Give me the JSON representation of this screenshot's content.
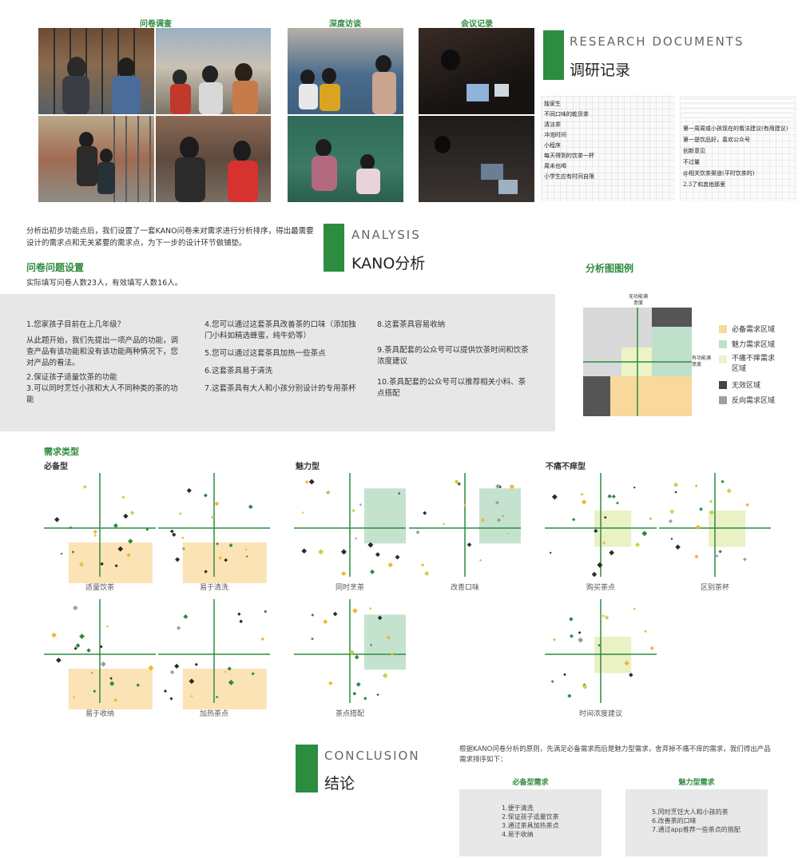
{
  "photos": {
    "captions": {
      "survey": "问卷调查",
      "interview": "深度访谈",
      "meeting": "会议记录"
    }
  },
  "research": {
    "title_en": "RESEARCH DOCUMENTS",
    "title_cn": "调研记录"
  },
  "notes": {
    "left": [
      "独家生",
      "不同口味的乾货茶",
      "清淡茶",
      "冲泡时间",
      "小程序",
      "每天得到的饮茶一杯",
      "周末也喝",
      "小学生应有时间自限"
    ],
    "right_lines": [
      "第一周周或小孩现在的看法建议(有用建议)",
      "第一是饮品好，喜欢公众号",
      "创新意见",
      "不过量",
      "@相关饮茶渠道(平时饮茶的)",
      "2.3了和其他那里"
    ]
  },
  "analysis": {
    "intro": "分析出初步功能点后，我们设置了一套KANO问卷来对需求进行分析排序，得出最需要设计的需求点和无关紧要的需求点，为下一步的设计环节做铺垫。",
    "title_en": "ANALYSIS",
    "title_cn": "KANO分析",
    "q_title": "问卷问题设置",
    "q_sub": "实际填写问卷人数23人，有效填写人数16人。",
    "legend_title": "分析图图例"
  },
  "questions": {
    "col1": [
      "1.您家孩子目前在上几年级？",
      "从此题开始，我们先提出一项产品的功能，调查产品有该功能和没有该功能两种情况下，您对产品的看法。",
      "2.保证孩子适量饮茶的功能",
      "3.可以同时烹饪小孩和大人不同种类的茶的功能"
    ],
    "col2": [
      "4.您可以通过这套茶具改善茶的口味（添加独门小料如精选蜂蜜，纯牛奶等）",
      "5.您可以通过这套茶具加热一些茶点",
      "6.这套茶具易于清洗",
      "7.这套茶具有大人和小孩分别设计的专用茶杯"
    ],
    "col3": [
      "8.这套茶具容易收纳",
      "9.茶具配套的公众号可以提供饮茶时间和饮茶浓度建议",
      "10.茶具配套的公众号可以推荐相关小料、茶点搭配"
    ]
  },
  "legend": {
    "axis_y": "无功能满意度",
    "axis_x": "有功能满意度",
    "items": [
      {
        "label": "必备需求区域",
        "color": "#f9d89b"
      },
      {
        "label": "魅力需求区域",
        "color": "#bfe0cb"
      },
      {
        "label": "不痛不痒需求区域",
        "color": "#eef3c6"
      },
      {
        "label": "无效区域",
        "color": "#444444"
      },
      {
        "label": "反向需求区域",
        "color": "#a0a0a0"
      }
    ]
  },
  "types": {
    "heading": "需求类型",
    "must": "必备型",
    "attractive": "魅力型",
    "indifferent": "不痛不痒型"
  },
  "charts": [
    {
      "label": "适量饮茶",
      "zone": "must"
    },
    {
      "label": "易于清洗",
      "zone": "must"
    },
    {
      "label": "易于收纳",
      "zone": "must"
    },
    {
      "label": "加热茶点",
      "zone": "must"
    },
    {
      "label": "同时烹茶",
      "zone": "attractive"
    },
    {
      "label": "改善口味",
      "zone": "attractive"
    },
    {
      "label": "茶点搭配",
      "zone": "attractive"
    },
    {
      "label": "购买茶点",
      "zone": "indifferent"
    },
    {
      "label": "区别茶杯",
      "zone": "indifferent"
    },
    {
      "label": "时间浓度建议",
      "zone": "indifferent"
    }
  ],
  "conclusion": {
    "title_en": "CONCLUSION",
    "title_cn": "结论",
    "text": "根据KANO问卷分析的原则，先满足必备需求而后是魅力型需求，舍弃掉不痛不痒的需求，我们得出产品需求排序如下：",
    "must_head": "必备型需求",
    "must_items": [
      "1.便于清洗",
      "2.保证孩子适量饮茶",
      "3.通过茶具加热茶点",
      "4.易于收纳"
    ],
    "attr_head": "魅力型需求",
    "attr_items": [
      "5.同时烹饪大人和小孩的茶",
      "6.改善茶的口味",
      "7.通过app推荐一些茶点的搭配"
    ]
  }
}
